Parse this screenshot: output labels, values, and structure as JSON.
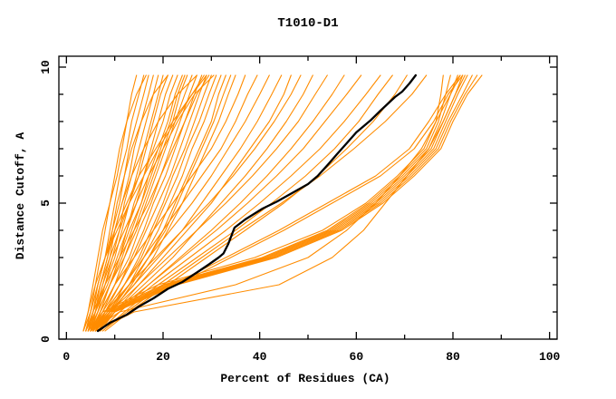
{
  "chart_data": {
    "type": "line",
    "title": "T1010-D1",
    "xlabel": "Percent of Residues (CA)",
    "ylabel": "Distance Cutoff, A",
    "xlim": [
      0,
      100
    ],
    "ylim": [
      0,
      10
    ],
    "grid": false,
    "legend": false,
    "x_ticks": {
      "major": [
        0,
        20,
        40,
        60,
        80,
        100
      ],
      "minor": [
        10,
        30,
        50,
        70,
        90
      ]
    },
    "y_ticks": {
      "major": [
        0,
        5,
        10
      ],
      "minor": [
        1,
        2,
        3,
        4,
        6,
        7,
        8,
        9
      ]
    },
    "colors": {
      "model_line": "#ff8c00",
      "highlight_line": "#000000",
      "frame": "#000000"
    },
    "y_levels": [
      0.3,
      1,
      2,
      3,
      4,
      5,
      6,
      7,
      8,
      9,
      9.7
    ],
    "models": [
      [
        4,
        5,
        6,
        7,
        8,
        9,
        10.5,
        11.5,
        12.5,
        13.5,
        14.5
      ],
      [
        4.5,
        5.5,
        6.5,
        8,
        9,
        10,
        11,
        12.5,
        13.5,
        15,
        16
      ],
      [
        3.5,
        5,
        6.5,
        8,
        9.5,
        10.5,
        12,
        13,
        14.5,
        16,
        17
      ],
      [
        5,
        6,
        7.5,
        9,
        10,
        11.5,
        13,
        14,
        15.5,
        17,
        18
      ],
      [
        4,
        5.5,
        7,
        9,
        11,
        12,
        13.5,
        15,
        16.5,
        18,
        19
      ],
      [
        5,
        6.5,
        8,
        9.5,
        11,
        13,
        14.5,
        16,
        17.5,
        19,
        20
      ],
      [
        4.5,
        6,
        8,
        10,
        11.5,
        13,
        15,
        16.5,
        18,
        19.5,
        21
      ],
      [
        5.5,
        7,
        9,
        11,
        12.5,
        14,
        16,
        17.5,
        19,
        20.5,
        22
      ],
      [
        4,
        6,
        8.5,
        10.5,
        12.5,
        14.5,
        16,
        18,
        20,
        21.5,
        23
      ],
      [
        5,
        7,
        9,
        11.5,
        13.5,
        15.5,
        17,
        19,
        21,
        22.5,
        24
      ],
      [
        5.5,
        7.5,
        10,
        12,
        14,
        16,
        18,
        20,
        22,
        23.5,
        25
      ],
      [
        4.5,
        6.5,
        9,
        12,
        14.5,
        16.5,
        18.5,
        20.5,
        22.5,
        24.5,
        26
      ],
      [
        5,
        7,
        10,
        13,
        15,
        17.5,
        19.5,
        21.5,
        23.5,
        25.5,
        27
      ],
      [
        6,
        8,
        11,
        13.5,
        16,
        18,
        20.5,
        22.5,
        24.5,
        26.5,
        28
      ],
      [
        5,
        7.5,
        11,
        14,
        16.5,
        19,
        21.5,
        23.5,
        25.5,
        27.5,
        29
      ],
      [
        6,
        9,
        12,
        15,
        17.5,
        20,
        22,
        24.5,
        26.5,
        28.5,
        30
      ],
      [
        5.5,
        8,
        12,
        15.5,
        18,
        20.5,
        23,
        25,
        27.5,
        29.5,
        31
      ],
      [
        6,
        9,
        13,
        16,
        19,
        21.5,
        24,
        26,
        28.5,
        30.5,
        32
      ],
      [
        6.5,
        9.5,
        13.5,
        17,
        20,
        22.5,
        25,
        27.5,
        30,
        31.5,
        33
      ],
      [
        5.5,
        8.5,
        13,
        17,
        20.5,
        23,
        25.5,
        28,
        30.5,
        32.5,
        34
      ],
      [
        6,
        9,
        14,
        18,
        21,
        24,
        26.5,
        29,
        31.5,
        33.5,
        35
      ],
      [
        4,
        5,
        6.5,
        8,
        10,
        12.5,
        15,
        18.5,
        22,
        26,
        29
      ],
      [
        5,
        6,
        7,
        8.5,
        10,
        11.5,
        13.5,
        16,
        19,
        23,
        27
      ],
      [
        4.5,
        5.5,
        7,
        8.5,
        9.5,
        11,
        12,
        13.5,
        15.5,
        18,
        21
      ],
      [
        3.5,
        4.5,
        5.5,
        6.5,
        7.5,
        9,
        10,
        11,
        12.5,
        14.5,
        16.5
      ],
      [
        5,
        6.5,
        9,
        11,
        13,
        15.5,
        17.5,
        19.5,
        21.5,
        23,
        24.5
      ],
      [
        4,
        5.5,
        8,
        11,
        14,
        17,
        19.5,
        22,
        24.5,
        27,
        29.5
      ],
      [
        3.5,
        4.5,
        6,
        8,
        10.5,
        13,
        16,
        19,
        22.5,
        26,
        28.5
      ],
      [
        4.5,
        6,
        7.5,
        9.5,
        12,
        14.5,
        17,
        20,
        23,
        26.5,
        30.5
      ],
      [
        5,
        7,
        10,
        14,
        18,
        22,
        26,
        30,
        33,
        35.5,
        37
      ],
      [
        6,
        8,
        12,
        16,
        20,
        24,
        28,
        32,
        35,
        37.5,
        39.5
      ],
      [
        5.5,
        8,
        13,
        17,
        21.5,
        26,
        30,
        33.5,
        37,
        40,
        42
      ],
      [
        6,
        9,
        14,
        19,
        24,
        28,
        32,
        36,
        39.5,
        42.5,
        44.5
      ],
      [
        6.5,
        10,
        15,
        20,
        25,
        30,
        34,
        38,
        42,
        45,
        46.5
      ],
      [
        5,
        8,
        13,
        18.5,
        24,
        29.5,
        34.5,
        39,
        43,
        46.5,
        48.5
      ],
      [
        7,
        10,
        16,
        22,
        27,
        32,
        37,
        41.5,
        45.5,
        49,
        51
      ],
      [
        6,
        9,
        15,
        21,
        27,
        33,
        38.5,
        43.5,
        48,
        51.5,
        54
      ],
      [
        7,
        11,
        17,
        23.5,
        30,
        36,
        41.5,
        46.5,
        51,
        55,
        57.5
      ],
      [
        6.5,
        10,
        17,
        24,
        31,
        37.5,
        43.5,
        49,
        53.5,
        58,
        61
      ],
      [
        7,
        11,
        18,
        25.5,
        33,
        40,
        46.5,
        52.5,
        57.5,
        62,
        65
      ],
      [
        7.5,
        12,
        19,
        27,
        35,
        42.5,
        49.5,
        55.5,
        60.5,
        64.5,
        67.5
      ],
      [
        8,
        13,
        21,
        29,
        37,
        45,
        52,
        58,
        63.5,
        68,
        70.5
      ],
      [
        7.5,
        12.5,
        20,
        28,
        36,
        44.5,
        52.5,
        59.5,
        66,
        71.5,
        74.5
      ],
      [
        4.5,
        7.5,
        19,
        39,
        53,
        62,
        68.5,
        74,
        76.5,
        77.5,
        78
      ],
      [
        5,
        8,
        20,
        40.5,
        54,
        62.5,
        69,
        74.5,
        77,
        78.5,
        79.5
      ],
      [
        5,
        8.5,
        20.5,
        41,
        54.5,
        63,
        69.5,
        75,
        77.5,
        79.5,
        81
      ],
      [
        5.5,
        9,
        21,
        41.5,
        55,
        63.5,
        70,
        75.5,
        78,
        80.5,
        82
      ],
      [
        5.5,
        9,
        21.5,
        42,
        55.5,
        64,
        70.5,
        76,
        78.5,
        81,
        83
      ],
      [
        6,
        9.5,
        22,
        42.5,
        56,
        64.5,
        71,
        76.5,
        79,
        82,
        84
      ],
      [
        6,
        10,
        22.5,
        43,
        56.5,
        65,
        71.5,
        77,
        79.5,
        82.5,
        85
      ],
      [
        6.5,
        10,
        23,
        43.5,
        57,
        65.5,
        72,
        77.5,
        80,
        83,
        86
      ],
      [
        5,
        9,
        22,
        33,
        44,
        54,
        64,
        71,
        75,
        78.5,
        81.5
      ],
      [
        5.5,
        9.5,
        23,
        34,
        45,
        55,
        65,
        72,
        76,
        79,
        82
      ],
      [
        6,
        14,
        44,
        55,
        61.5,
        66,
        70.5,
        75,
        78,
        80.5,
        82.5
      ],
      [
        5,
        11,
        35,
        50,
        58,
        64,
        69,
        73.5,
        76.5,
        79.5,
        81.5
      ]
    ],
    "highlight_model": {
      "points": [
        [
          6.5,
          0.3
        ],
        [
          9,
          0.6
        ],
        [
          12.5,
          0.9
        ],
        [
          15,
          1.2
        ],
        [
          18,
          1.5
        ],
        [
          21,
          1.85
        ],
        [
          24,
          2.1
        ],
        [
          27,
          2.45
        ],
        [
          29.5,
          2.75
        ],
        [
          31.5,
          3.0
        ],
        [
          32.5,
          3.15
        ],
        [
          33.5,
          3.5
        ],
        [
          34.8,
          4.1
        ],
        [
          37,
          4.4
        ],
        [
          40.6,
          4.8
        ],
        [
          43.5,
          5.05
        ],
        [
          46,
          5.3
        ],
        [
          50,
          5.7
        ],
        [
          52,
          6.0
        ],
        [
          54.3,
          6.45
        ],
        [
          56,
          6.8
        ],
        [
          58,
          7.2
        ],
        [
          60,
          7.6
        ],
        [
          63,
          8.05
        ],
        [
          65,
          8.4
        ],
        [
          68,
          8.9
        ],
        [
          69.5,
          9.1
        ],
        [
          71,
          9.4
        ],
        [
          72.3,
          9.7
        ]
      ]
    }
  }
}
